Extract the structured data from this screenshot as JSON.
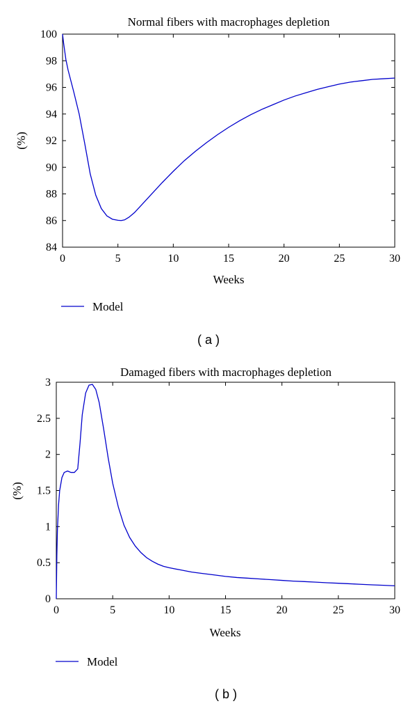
{
  "chart_data": [
    {
      "type": "line",
      "panel_label": "( a )",
      "title": "Normal fibers with macrophages depletion",
      "xlabel": "Weeks",
      "ylabel": "(%)",
      "xlim": [
        0,
        30
      ],
      "ylim": [
        84,
        100
      ],
      "xticks": [
        0,
        5,
        10,
        15,
        20,
        25,
        30
      ],
      "yticks": [
        84,
        86,
        88,
        90,
        92,
        94,
        96,
        98,
        100
      ],
      "grid": false,
      "legend_position": "below-left",
      "series": [
        {
          "name": "Model",
          "color": "#0000cc",
          "x": [
            0,
            0.1,
            0.3,
            0.5,
            1,
            1.5,
            2,
            2.5,
            3,
            3.5,
            4,
            4.5,
            5,
            5.3,
            5.6,
            6,
            6.5,
            7,
            8,
            9,
            10,
            11,
            12,
            13,
            14,
            15,
            16,
            17,
            18,
            19,
            20,
            21,
            22,
            23,
            24,
            25,
            26,
            27,
            28,
            29,
            30
          ],
          "y": [
            100,
            99.3,
            98.1,
            97.3,
            95.7,
            94.0,
            91.8,
            89.5,
            87.9,
            86.9,
            86.35,
            86.1,
            86.02,
            86.0,
            86.05,
            86.25,
            86.6,
            87.05,
            87.95,
            88.85,
            89.7,
            90.5,
            91.2,
            91.85,
            92.45,
            93.0,
            93.5,
            93.95,
            94.35,
            94.7,
            95.05,
            95.35,
            95.6,
            95.85,
            96.05,
            96.25,
            96.4,
            96.5,
            96.6,
            96.65,
            96.7
          ]
        }
      ]
    },
    {
      "type": "line",
      "panel_label": "( b )",
      "title": "Damaged fibers with macrophages depletion",
      "xlabel": "Weeks",
      "ylabel": "(%)",
      "xlim": [
        0,
        30
      ],
      "ylim": [
        0,
        3
      ],
      "xticks": [
        0,
        5,
        10,
        15,
        20,
        25,
        30
      ],
      "yticks": [
        0,
        0.5,
        1,
        1.5,
        2,
        2.5,
        3
      ],
      "grid": false,
      "legend_position": "below-left",
      "series": [
        {
          "name": "Model",
          "color": "#0000cc",
          "x": [
            0,
            0.05,
            0.1,
            0.2,
            0.3,
            0.5,
            0.7,
            1.0,
            1.3,
            1.6,
            1.9,
            2.1,
            2.3,
            2.6,
            2.9,
            3.2,
            3.5,
            3.8,
            4.2,
            4.6,
            5.0,
            5.5,
            6.0,
            6.5,
            7.0,
            7.5,
            8.0,
            8.5,
            9.0,
            9.5,
            10,
            11,
            12,
            13,
            14,
            15,
            16,
            17,
            18,
            19,
            20,
            21,
            22,
            23,
            24,
            25,
            26,
            27,
            28,
            29,
            30
          ],
          "y": [
            0,
            0.6,
            0.95,
            1.3,
            1.5,
            1.68,
            1.75,
            1.77,
            1.75,
            1.75,
            1.8,
            2.15,
            2.55,
            2.85,
            2.96,
            2.97,
            2.9,
            2.72,
            2.35,
            1.95,
            1.6,
            1.27,
            1.02,
            0.85,
            0.73,
            0.64,
            0.57,
            0.52,
            0.48,
            0.45,
            0.43,
            0.4,
            0.37,
            0.35,
            0.33,
            0.31,
            0.295,
            0.285,
            0.275,
            0.265,
            0.255,
            0.245,
            0.238,
            0.23,
            0.222,
            0.215,
            0.208,
            0.2,
            0.193,
            0.187,
            0.18
          ]
        }
      ]
    }
  ]
}
